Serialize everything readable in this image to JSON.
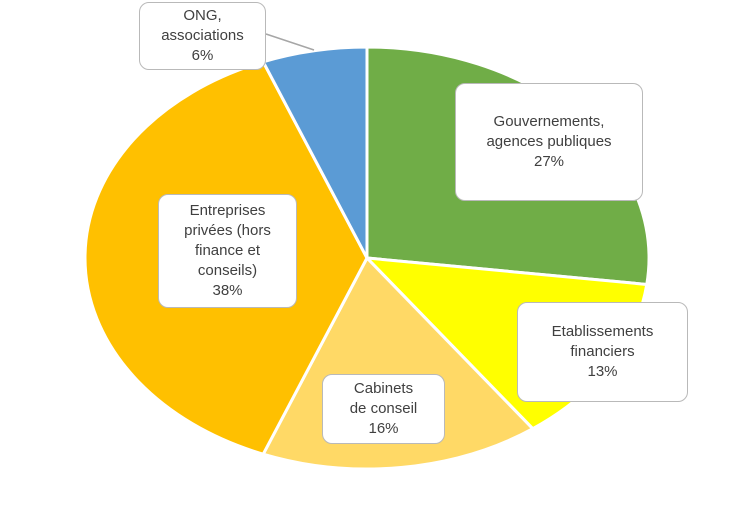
{
  "chart_data": {
    "type": "pie",
    "title": "",
    "start_angle_deg": 0,
    "direction": "clockwise",
    "slices": [
      {
        "label_lines": [
          "Gouvernements,",
          "agences publiques"
        ],
        "value": 27,
        "value_label": "27%",
        "color": "#70ad47"
      },
      {
        "label_lines": [
          "Etablissements",
          "financiers"
        ],
        "value": 13,
        "value_label": "13%",
        "color": "#ffff00"
      },
      {
        "label_lines": [
          "Cabinets",
          "de conseil"
        ],
        "value": 16,
        "value_label": "16%",
        "color": "#ffd966"
      },
      {
        "label_lines": [
          "Entreprises",
          "privées (hors",
          "finance et",
          "conseils)"
        ],
        "value": 38,
        "value_label": "38%",
        "color": "#ffc000"
      },
      {
        "label_lines": [
          "ONG,",
          "associations"
        ],
        "value": 6,
        "value_label": "6%",
        "color": "#5b9bd5"
      }
    ]
  }
}
